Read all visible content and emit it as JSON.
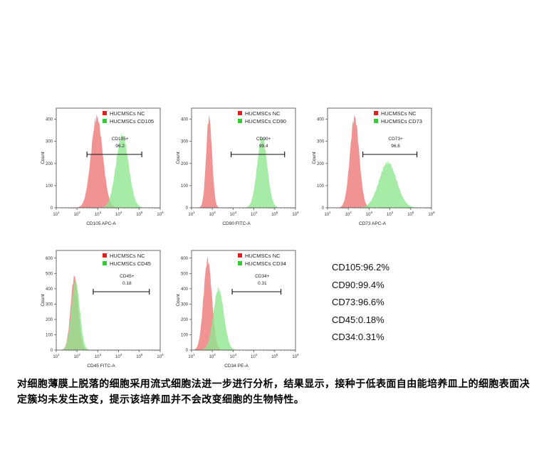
{
  "chart_data": [
    {
      "type": "area",
      "chart": "CD105",
      "xlabel": "CD105 APC-A",
      "ylabel": "Count",
      "xscale": "log",
      "xlim": [
        10,
        1000000
      ],
      "ylim": [
        0,
        450
      ],
      "yticks": [
        0,
        100,
        200,
        300,
        400
      ],
      "legend": [
        "HUCMSCs NC",
        "HUCMSCs CD105"
      ],
      "legend_position": "top-center",
      "gate": {
        "label": "CD105+",
        "value": "96.2",
        "range": [
          300,
          130000
        ]
      },
      "series": [
        {
          "name": "HUCMSCs NC",
          "color": "#f08080",
          "peak_x": 900,
          "width_decades": 0.28,
          "peak_y": 410
        },
        {
          "name": "HUCMSCs CD105",
          "color": "#90e690",
          "peak_x": 15000,
          "width_decades": 0.3,
          "peak_y": 330
        }
      ]
    },
    {
      "type": "area",
      "chart": "CD90",
      "xlabel": "CD90 FITC-A",
      "ylabel": "Count",
      "xscale": "log",
      "xlim": [
        10,
        1000000
      ],
      "ylim": [
        0,
        450
      ],
      "yticks": [
        0,
        100,
        200,
        300,
        400
      ],
      "legend": [
        "HUCMSCs NC",
        "HUCMSCs CD90"
      ],
      "legend_position": "top-center",
      "gate": {
        "label": "CD90+",
        "value": "99.4",
        "range": [
          800,
          300000
        ]
      },
      "series": [
        {
          "name": "HUCMSCs NC",
          "color": "#f08080",
          "peak_x": 70,
          "width_decades": 0.14,
          "peak_y": 410
        },
        {
          "name": "HUCMSCs CD90",
          "color": "#90e690",
          "peak_x": 25000,
          "width_decades": 0.24,
          "peak_y": 320
        }
      ]
    },
    {
      "type": "area",
      "chart": "CD73",
      "xlabel": "CD73 APC-A",
      "ylabel": "Count",
      "xscale": "log",
      "xlim": [
        10,
        1000000
      ],
      "ylim": [
        0,
        450
      ],
      "yticks": [
        0,
        100,
        200,
        300,
        400
      ],
      "legend": [
        "HUCMSCs NC",
        "HUCMSCs CD73"
      ],
      "legend_position": "top-center",
      "gate": {
        "label": "CD73+",
        "value": "96.6",
        "range": [
          500,
          200000
        ]
      },
      "series": [
        {
          "name": "HUCMSCs NC",
          "color": "#f08080",
          "peak_x": 200,
          "width_decades": 0.22,
          "peak_y": 410
        },
        {
          "name": "HUCMSCs CD73",
          "color": "#90e690",
          "peak_x": 8000,
          "width_decades": 0.42,
          "peak_y": 205
        }
      ]
    },
    {
      "type": "area",
      "chart": "CD45",
      "xlabel": "CD45 FITC-A",
      "ylabel": "Count",
      "xscale": "log",
      "xlim": [
        10,
        1000000
      ],
      "ylim": [
        0,
        650
      ],
      "yticks": [
        0,
        100,
        200,
        300,
        400,
        500,
        600
      ],
      "legend": [
        "HUCMSCs NC",
        "HUCMSCs CD45"
      ],
      "legend_position": "top-center",
      "gate": {
        "label": "CD45+",
        "value": "0.18",
        "range": [
          600,
          300000
        ]
      },
      "series": [
        {
          "name": "HUCMSCs NC",
          "color": "#f08080",
          "peak_x": 75,
          "width_decades": 0.18,
          "peak_y": 480
        },
        {
          "name": "HUCMSCs CD45",
          "color": "#90e690",
          "peak_x": 85,
          "width_decades": 0.2,
          "peak_y": 450
        }
      ]
    },
    {
      "type": "area",
      "chart": "CD34",
      "xlabel": "CD34 PE-A",
      "ylabel": "Count",
      "xscale": "log",
      "xlim": [
        10,
        1000000
      ],
      "ylim": [
        0,
        650
      ],
      "yticks": [
        0,
        100,
        200,
        300,
        400,
        500,
        600
      ],
      "legend": [
        "HUCMSCs NC",
        "HUCMSCs CD34"
      ],
      "legend_position": "top-center",
      "gate": {
        "label": "CD34+",
        "value": "0.31",
        "range": [
          900,
          200000
        ]
      },
      "series": [
        {
          "name": "HUCMSCs NC",
          "color": "#f08080",
          "peak_x": 60,
          "width_decades": 0.2,
          "peak_y": 590
        },
        {
          "name": "HUCMSCs CD34",
          "color": "#90e690",
          "peak_x": 200,
          "width_decades": 0.25,
          "peak_y": 400
        }
      ]
    }
  ],
  "summary": [
    "CD105:96.2%",
    "CD90:99.4%",
    "CD73:96.6%",
    "CD45:0.18%",
    "CD34:0.31%"
  ],
  "caption": "对细胞薄膜上脱落的细胞采用流式细胞法进一步进行分析，结果显示，接种于低表面自由能培养皿上的细胞表面决定簇均未发生改变，提示该培养皿并不会改变细胞的生物特性。"
}
